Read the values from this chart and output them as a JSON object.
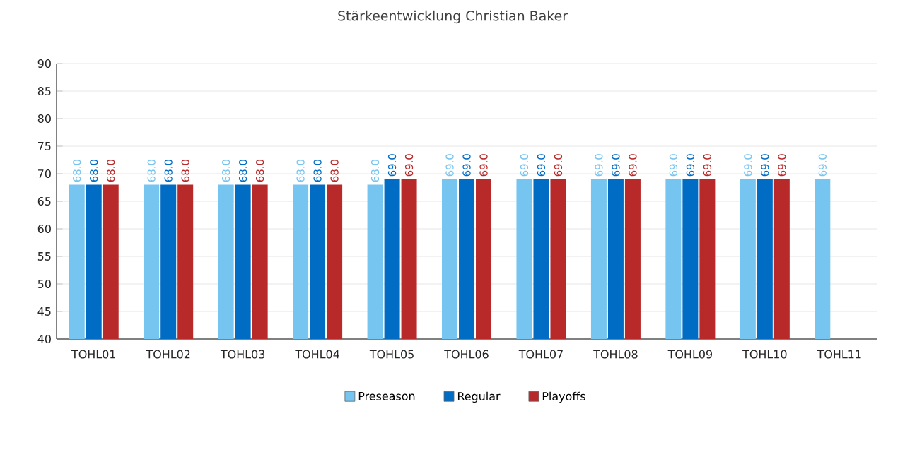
{
  "chart_data": {
    "type": "bar",
    "title": "Stärkeentwicklung Christian Baker",
    "categories": [
      "TOHL01",
      "TOHL02",
      "TOHL03",
      "TOHL04",
      "TOHL05",
      "TOHL06",
      "TOHL07",
      "TOHL08",
      "TOHL09",
      "TOHL10",
      "TOHL11"
    ],
    "series": [
      {
        "name": "Preseason",
        "color": "#76c4f0",
        "values": [
          68,
          68,
          68,
          68,
          68,
          69,
          69,
          69,
          69,
          69,
          69
        ],
        "value_labels": [
          "68.0",
          "68.0",
          "68.0",
          "68.0",
          "68.0",
          "69.0",
          "69.0",
          "69.0",
          "69.0",
          "69.0",
          "69.0"
        ]
      },
      {
        "name": "Regular",
        "color": "#006cc4",
        "values": [
          68,
          68,
          68,
          68,
          69,
          69,
          69,
          69,
          69,
          69,
          null
        ],
        "value_labels": [
          "68.0",
          "68.0",
          "68.0",
          "68.0",
          "69.0",
          "69.0",
          "69.0",
          "69.0",
          "69.0",
          "69.0",
          null
        ]
      },
      {
        "name": "Playoffs",
        "color": "#b8292a",
        "values": [
          68,
          68,
          68,
          68,
          69,
          69,
          69,
          69,
          69,
          69,
          null
        ],
        "value_labels": [
          "68.0",
          "68.0",
          "68.0",
          "68.0",
          "69.0",
          "69.0",
          "69.0",
          "69.0",
          "69.0",
          "69.0",
          null
        ]
      }
    ],
    "ylim": [
      40,
      90
    ],
    "yticks": [
      40,
      45,
      50,
      55,
      60,
      65,
      70,
      75,
      80,
      85,
      90
    ],
    "grid": "y",
    "legend": "bottom"
  }
}
